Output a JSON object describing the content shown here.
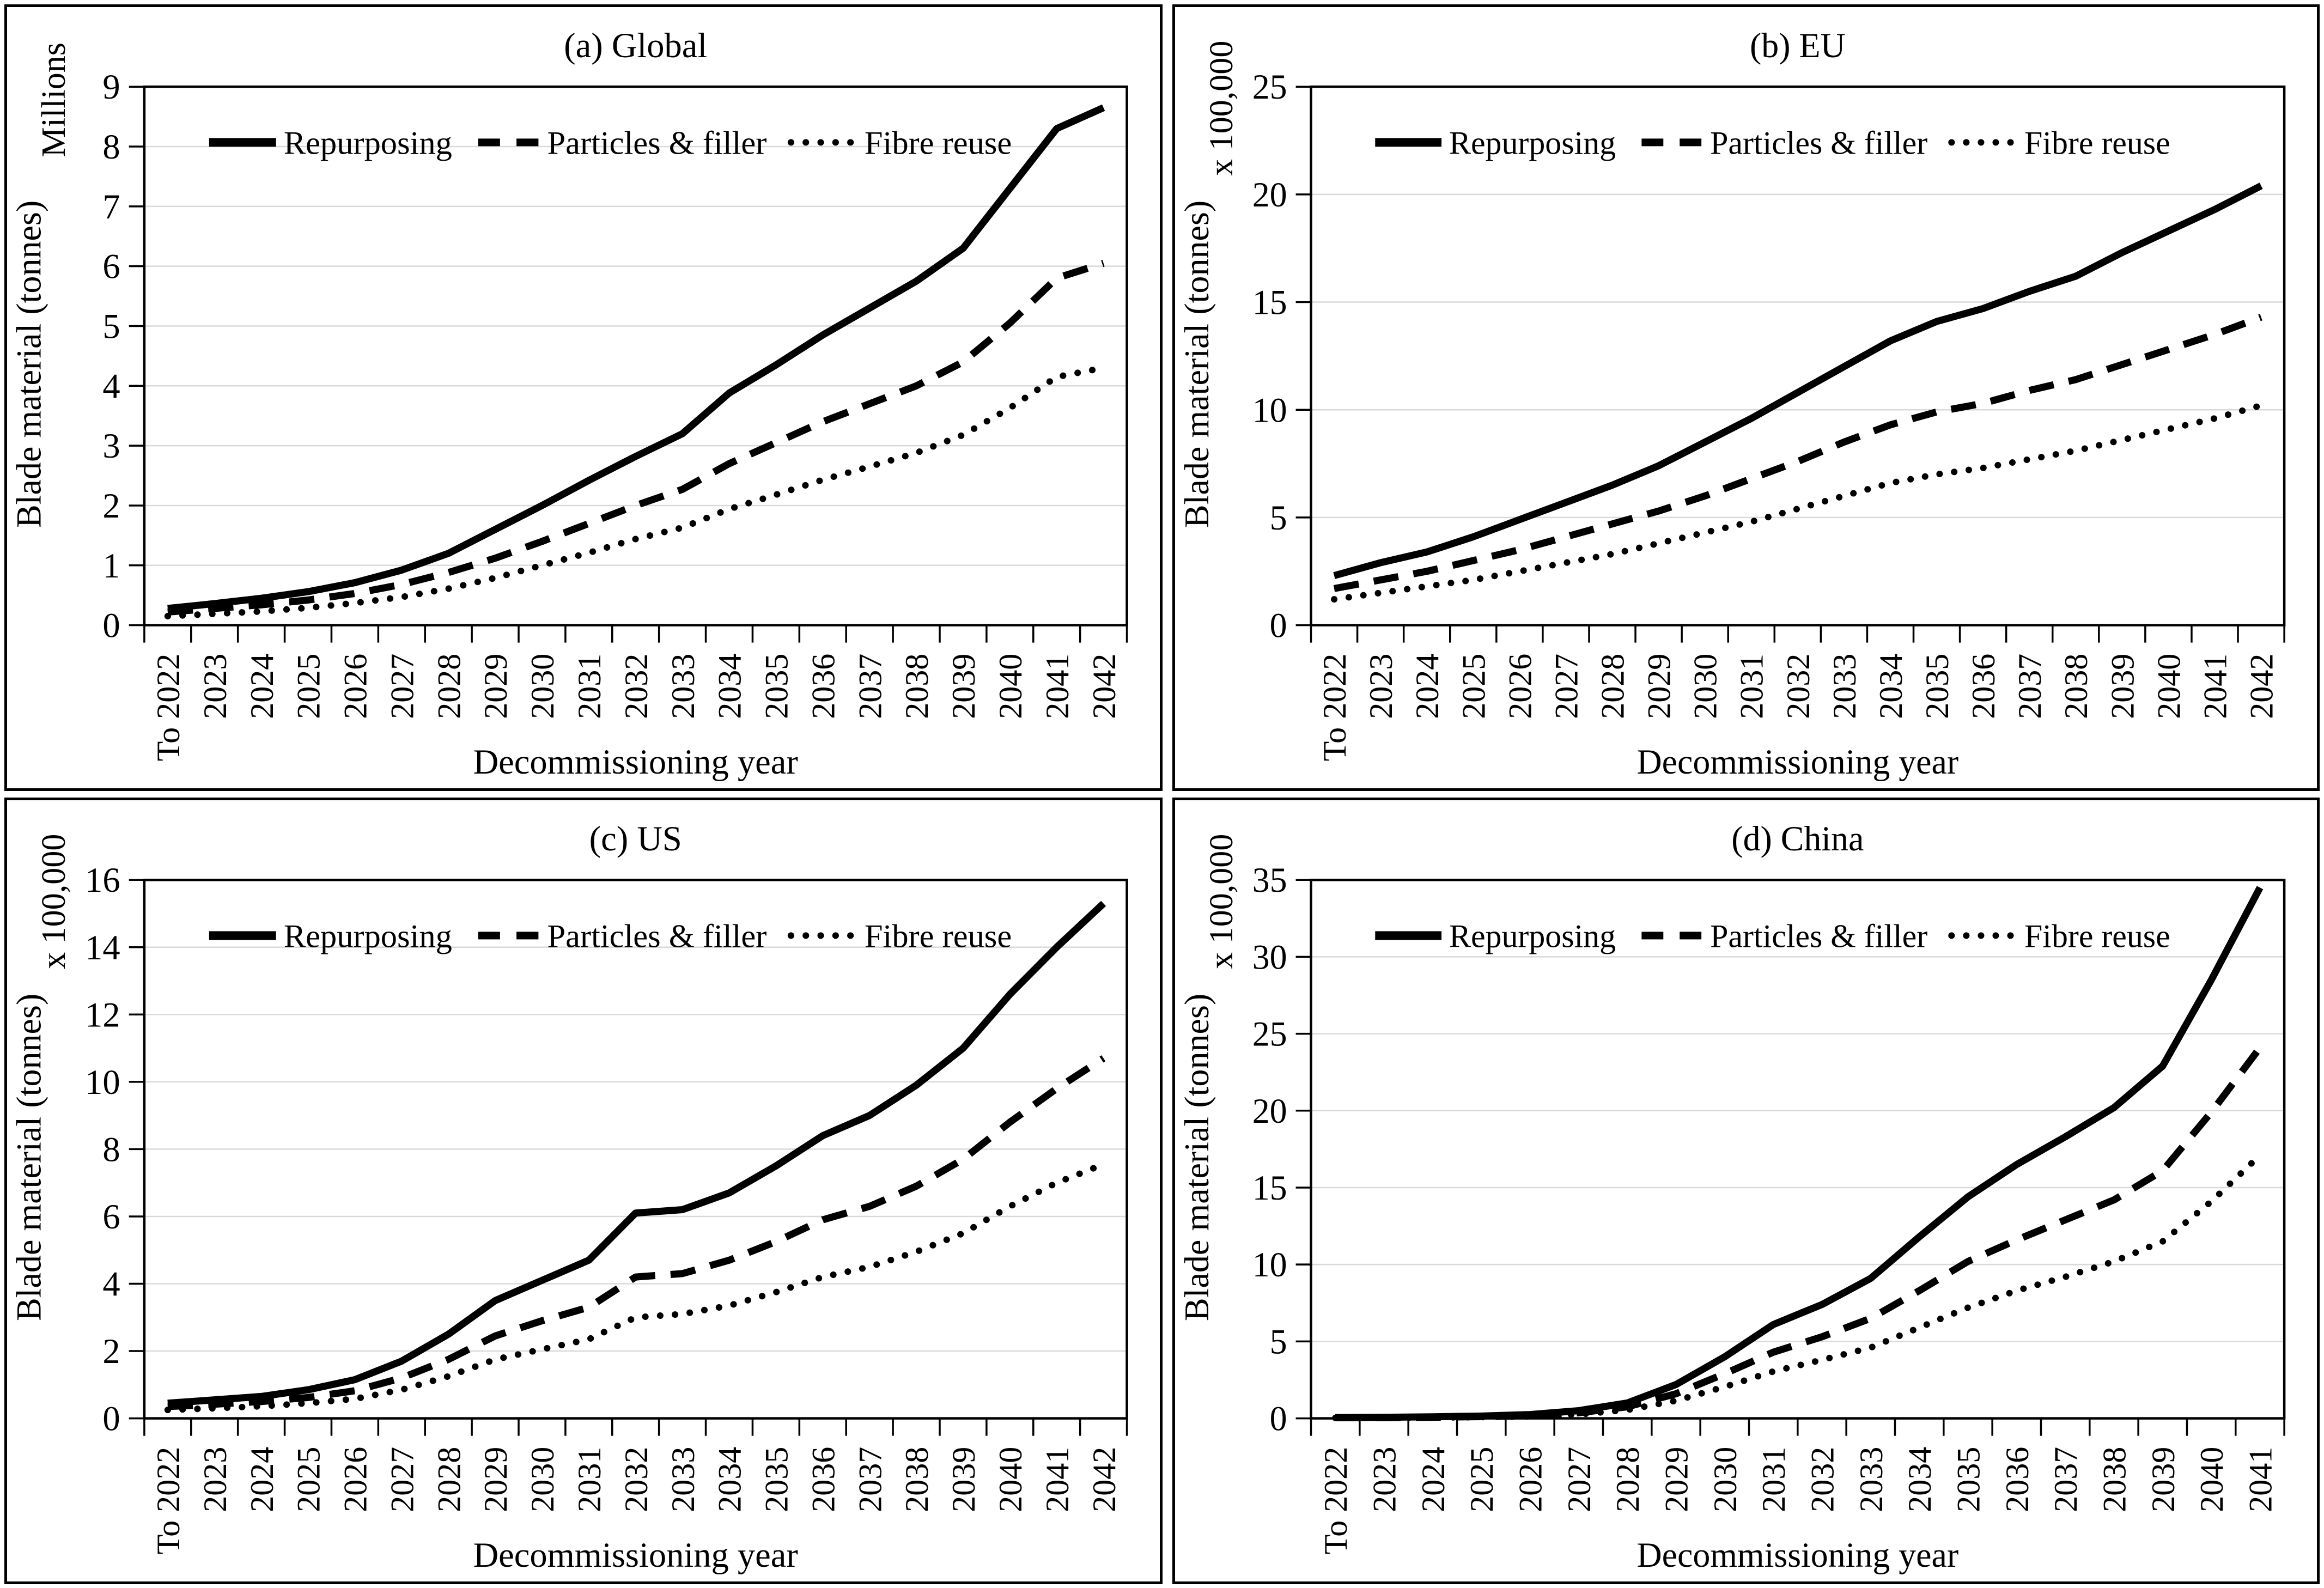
{
  "figure": {
    "ylabel": "Blade material (tonnes)",
    "xlabel": "Decommissioning year",
    "line_color": "#000000",
    "gridline_color": "#d9d9d9",
    "legend_labels": [
      "Repurposing",
      "Particles & filler",
      "Fibre reuse"
    ]
  },
  "chart_data": [
    {
      "type": "line",
      "title": "(a) Global",
      "unit_label": "Millions",
      "xlabel": "Decommissioning year",
      "ylabel": "Blade material (tonnes)",
      "ylim": [
        0,
        9
      ],
      "ytick_step": 1,
      "grid": "horizontal",
      "legend_position": "top-inside",
      "categories": [
        "To 2022",
        "2023",
        "2024",
        "2025",
        "2026",
        "2027",
        "2028",
        "2029",
        "2030",
        "2031",
        "2032",
        "2033",
        "2034",
        "2035",
        "2036",
        "2037",
        "2038",
        "2039",
        "2040",
        "2041",
        "2042"
      ],
      "series": [
        {
          "name": "Repurposing",
          "style": "solid",
          "values": [
            0.28,
            0.36,
            0.45,
            0.56,
            0.71,
            0.92,
            1.2,
            1.6,
            2.0,
            2.42,
            2.82,
            3.2,
            3.88,
            4.35,
            4.85,
            5.3,
            5.75,
            6.3,
            7.3,
            8.3,
            8.65
          ]
        },
        {
          "name": "Particles & filler",
          "style": "dashed",
          "values": [
            0.22,
            0.28,
            0.34,
            0.42,
            0.53,
            0.68,
            0.88,
            1.12,
            1.4,
            1.7,
            2.0,
            2.27,
            2.7,
            3.05,
            3.4,
            3.7,
            4.0,
            4.4,
            5.05,
            5.8,
            6.05
          ]
        },
        {
          "name": "Fibre reuse",
          "style": "dotted",
          "values": [
            0.15,
            0.19,
            0.23,
            0.29,
            0.37,
            0.47,
            0.61,
            0.79,
            1.0,
            1.21,
            1.44,
            1.63,
            1.94,
            2.18,
            2.43,
            2.65,
            2.88,
            3.18,
            3.63,
            4.15,
            4.3
          ]
        }
      ]
    },
    {
      "type": "line",
      "title": "(b) EU",
      "unit_label": "x 100,000",
      "xlabel": "Decommissioning year",
      "ylabel": "Blade material (tonnes)",
      "ylim": [
        0,
        25
      ],
      "ytick_step": 5,
      "grid": "horizontal",
      "legend_position": "top-inside",
      "categories": [
        "To 2022",
        "2023",
        "2024",
        "2025",
        "2026",
        "2027",
        "2028",
        "2029",
        "2030",
        "2031",
        "2032",
        "2033",
        "2034",
        "2035",
        "2036",
        "2037",
        "2038",
        "2039",
        "2040",
        "2041",
        "2042"
      ],
      "series": [
        {
          "name": "Repurposing",
          "style": "solid",
          "values": [
            2.3,
            2.9,
            3.4,
            4.1,
            4.9,
            5.7,
            6.5,
            7.4,
            8.5,
            9.6,
            10.8,
            12.0,
            13.2,
            14.1,
            14.7,
            15.5,
            16.2,
            17.3,
            18.3,
            19.3,
            20.4
          ]
        },
        {
          "name": "Particles & filler",
          "style": "dashed",
          "values": [
            1.7,
            2.1,
            2.5,
            3.0,
            3.5,
            4.1,
            4.7,
            5.3,
            6.0,
            6.8,
            7.6,
            8.5,
            9.3,
            9.9,
            10.3,
            10.9,
            11.4,
            12.1,
            12.8,
            13.5,
            14.3
          ]
        },
        {
          "name": "Fibre reuse",
          "style": "dotted",
          "values": [
            1.2,
            1.5,
            1.8,
            2.1,
            2.5,
            2.9,
            3.3,
            3.8,
            4.3,
            4.8,
            5.4,
            6.0,
            6.6,
            7.0,
            7.3,
            7.7,
            8.1,
            8.6,
            9.1,
            9.6,
            10.2
          ]
        }
      ]
    },
    {
      "type": "line",
      "title": "(c) US",
      "unit_label": "x 100,000",
      "xlabel": "Decommissioning year",
      "ylabel": "Blade material (tonnes)",
      "ylim": [
        0,
        16
      ],
      "ytick_step": 2,
      "grid": "horizontal",
      "legend_position": "top-inside",
      "categories": [
        "To 2022",
        "2023",
        "2024",
        "2025",
        "2026",
        "2027",
        "2028",
        "2029",
        "2030",
        "2031",
        "2032",
        "2033",
        "2034",
        "2035",
        "2036",
        "2037",
        "2038",
        "2039",
        "2040",
        "2041",
        "2042"
      ],
      "series": [
        {
          "name": "Repurposing",
          "style": "solid",
          "values": [
            0.45,
            0.55,
            0.65,
            0.85,
            1.15,
            1.7,
            2.5,
            3.5,
            4.1,
            4.7,
            6.1,
            6.2,
            6.7,
            7.5,
            8.4,
            9.0,
            9.9,
            11.0,
            12.6,
            14.0,
            15.3
          ]
        },
        {
          "name": "Particles & filler",
          "style": "dashed",
          "values": [
            0.35,
            0.42,
            0.5,
            0.62,
            0.82,
            1.2,
            1.75,
            2.45,
            2.9,
            3.3,
            4.2,
            4.3,
            4.7,
            5.25,
            5.9,
            6.3,
            6.9,
            7.7,
            8.8,
            9.8,
            10.7
          ]
        },
        {
          "name": "Fibre reuse",
          "style": "dotted",
          "values": [
            0.25,
            0.3,
            0.36,
            0.45,
            0.58,
            0.85,
            1.25,
            1.75,
            2.05,
            2.35,
            3.0,
            3.1,
            3.35,
            3.75,
            4.2,
            4.5,
            4.95,
            5.5,
            6.3,
            7.0,
            7.55
          ]
        }
      ]
    },
    {
      "type": "line",
      "title": "(d) China",
      "unit_label": "x 100,000",
      "xlabel": "Decommissioning year",
      "ylabel": "Blade material (tonnes)",
      "ylim": [
        0,
        35
      ],
      "ytick_step": 5,
      "grid": "horizontal",
      "legend_position": "top-inside",
      "categories": [
        "To 2022",
        "2023",
        "2024",
        "2025",
        "2026",
        "2027",
        "2028",
        "2029",
        "2030",
        "2031",
        "2032",
        "2033",
        "2034",
        "2035",
        "2036",
        "2037",
        "2038",
        "2039",
        "2040",
        "2041"
      ],
      "series": [
        {
          "name": "Repurposing",
          "style": "solid",
          "values": [
            0.05,
            0.07,
            0.1,
            0.15,
            0.25,
            0.5,
            1.0,
            2.2,
            4.0,
            6.1,
            7.4,
            9.1,
            11.8,
            14.4,
            16.5,
            18.3,
            20.2,
            22.9,
            28.5,
            34.5
          ]
        },
        {
          "name": "Particles & filler",
          "style": "dashed",
          "values": [
            0.04,
            0.05,
            0.07,
            0.11,
            0.18,
            0.36,
            0.75,
            1.6,
            2.9,
            4.3,
            5.3,
            6.5,
            8.3,
            10.2,
            11.6,
            12.9,
            14.2,
            16.1,
            19.9,
            24.1
          ]
        },
        {
          "name": "Fibre reuse",
          "style": "dotted",
          "values": [
            0.03,
            0.04,
            0.05,
            0.08,
            0.13,
            0.26,
            0.55,
            1.15,
            2.05,
            3.05,
            3.8,
            4.6,
            5.9,
            7.2,
            8.3,
            9.2,
            10.2,
            11.5,
            14.1,
            17.1
          ]
        }
      ]
    }
  ]
}
